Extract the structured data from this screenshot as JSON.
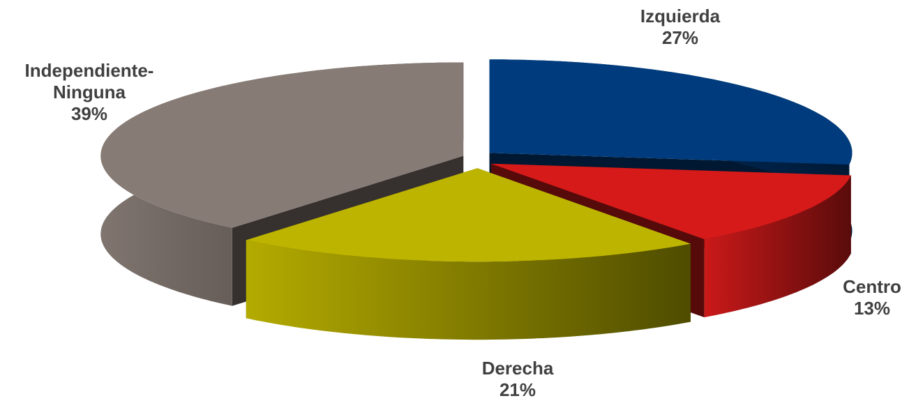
{
  "chart_data": {
    "type": "pie3d",
    "categories": [
      "Izquierda",
      "Centro",
      "Derecha",
      "Independiente-Ninguna"
    ],
    "values": [
      27,
      13,
      21,
      39
    ],
    "value_labels": [
      "27%",
      "13%",
      "21%",
      "39%"
    ],
    "colors": [
      "#003c7d",
      "#d61a1a",
      "#bdb400",
      "#877b75"
    ]
  }
}
